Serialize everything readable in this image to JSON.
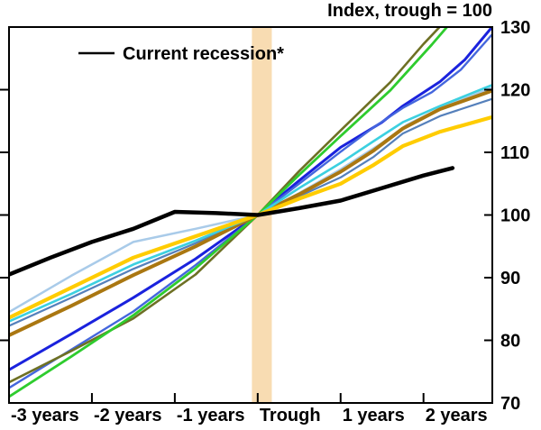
{
  "header": {
    "title": "Index, trough = 100"
  },
  "legend": {
    "label": "Current recession*",
    "line_color": "#000000"
  },
  "chart_data": {
    "type": "line",
    "title": "Index, trough = 100",
    "xlabel": "",
    "ylabel": "Index (trough = 100)",
    "x_axis": {
      "tick_labels": [
        "-3 years",
        "-2 years",
        "-1 years",
        "Trough",
        "1 years",
        "2 years"
      ],
      "tick_values": [
        -3,
        -2,
        -1,
        0,
        1,
        2
      ],
      "range": [
        -3,
        2.83
      ],
      "grid": false
    },
    "y_axis": {
      "side": "right",
      "tick_labels": [
        "70",
        "80",
        "90",
        "100",
        "110",
        "120",
        "130"
      ],
      "tick_values": [
        70,
        80,
        90,
        100,
        110,
        120,
        130
      ],
      "range": [
        70,
        130
      ],
      "grid": false
    },
    "trough_band": {
      "from": -0.07,
      "to": 0.17,
      "color": "#F8DCB2"
    },
    "series": [
      {
        "name": "past-recession-lightblue",
        "color": "#A9CBE9",
        "width": 2.5,
        "points": [
          [
            -3.0,
            84.5
          ],
          [
            -2.25,
            90.3
          ],
          [
            -1.5,
            95.7
          ],
          [
            -0.75,
            97.8
          ],
          [
            0,
            100
          ],
          [
            0.5,
            103.5
          ],
          [
            1.0,
            107.3
          ],
          [
            1.5,
            111.5
          ],
          [
            1.8,
            114.4
          ],
          [
            2.2,
            117.0
          ],
          [
            2.82,
            120.3
          ]
        ]
      },
      {
        "name": "past-recession-steelblue",
        "color": "#5580BB",
        "width": 2.2,
        "points": [
          [
            -3.0,
            82.3
          ],
          [
            -2.25,
            86.8
          ],
          [
            -1.5,
            91.4
          ],
          [
            -0.75,
            95.5
          ],
          [
            0,
            100
          ],
          [
            0.5,
            103.0
          ],
          [
            1.0,
            106.0
          ],
          [
            1.4,
            109.3
          ],
          [
            1.75,
            113.0
          ],
          [
            2.2,
            115.8
          ],
          [
            2.82,
            118.5
          ]
        ]
      },
      {
        "name": "past-recession-blue",
        "color": "#1A22DD",
        "width": 3,
        "points": [
          [
            -3.0,
            75.3
          ],
          [
            -2.25,
            81.0
          ],
          [
            -1.5,
            86.8
          ],
          [
            -0.75,
            93.0
          ],
          [
            0,
            100
          ],
          [
            0.5,
            105.5
          ],
          [
            1.0,
            110.8
          ],
          [
            1.5,
            114.8
          ],
          [
            1.75,
            117.4
          ],
          [
            2.2,
            121.3
          ],
          [
            2.5,
            124.8
          ],
          [
            2.82,
            129.9
          ]
        ]
      },
      {
        "name": "past-recession-cornflower",
        "color": "#4466DD",
        "width": 2.4,
        "points": [
          [
            -3.0,
            72.4
          ],
          [
            -2.25,
            78.5
          ],
          [
            -1.5,
            84.6
          ],
          [
            -0.75,
            92.0
          ],
          [
            0,
            100
          ],
          [
            0.5,
            105.0
          ],
          [
            1.0,
            110.1
          ],
          [
            1.4,
            114.0
          ],
          [
            1.75,
            117.1
          ],
          [
            2.1,
            119.6
          ],
          [
            2.45,
            123.2
          ],
          [
            2.82,
            128.7
          ]
        ]
      },
      {
        "name": "past-recession-olive",
        "color": "#6E7024",
        "width": 2.6,
        "points": [
          [
            -3.0,
            73.3
          ],
          [
            -2.25,
            78.3
          ],
          [
            -1.5,
            83.5
          ],
          [
            -0.75,
            90.5
          ],
          [
            0,
            100
          ],
          [
            0.5,
            107.0
          ],
          [
            1.0,
            113.5
          ],
          [
            1.6,
            121.2
          ],
          [
            2.0,
            127.3
          ],
          [
            2.28,
            131.2
          ]
        ]
      },
      {
        "name": "past-recession-green",
        "color": "#2ECC2E",
        "width": 2.8,
        "points": [
          [
            -3.0,
            71.0
          ],
          [
            -2.25,
            77.4
          ],
          [
            -1.5,
            84.0
          ],
          [
            -0.75,
            91.5
          ],
          [
            0,
            100
          ],
          [
            0.5,
            106.4
          ],
          [
            1.0,
            112.6
          ],
          [
            1.6,
            119.9
          ],
          [
            2.1,
            127.2
          ],
          [
            2.36,
            131.2
          ]
        ]
      },
      {
        "name": "past-recession-goldenrod",
        "color": "#AA7711",
        "width": 4,
        "points": [
          [
            -3.0,
            80.8
          ],
          [
            -2.25,
            85.5
          ],
          [
            -1.5,
            90.4
          ],
          [
            -0.75,
            95.0
          ],
          [
            0,
            100
          ],
          [
            0.5,
            103.3
          ],
          [
            1.0,
            106.9
          ],
          [
            1.4,
            110.3
          ],
          [
            1.75,
            113.8
          ],
          [
            2.2,
            116.9
          ],
          [
            2.82,
            119.8
          ]
        ]
      },
      {
        "name": "past-recession-cyan",
        "color": "#3CD0E0",
        "width": 2.6,
        "points": [
          [
            -3.0,
            83.0
          ],
          [
            -2.25,
            87.4
          ],
          [
            -1.5,
            92.1
          ],
          [
            -0.75,
            95.9
          ],
          [
            0,
            100
          ],
          [
            0.5,
            104.3
          ],
          [
            1.0,
            108.3
          ],
          [
            1.4,
            111.8
          ],
          [
            1.75,
            114.8
          ],
          [
            2.2,
            117.4
          ],
          [
            2.82,
            120.7
          ]
        ]
      },
      {
        "name": "past-recession-yellow",
        "color": "#FFCC00",
        "width": 4.2,
        "points": [
          [
            -3.0,
            83.6
          ],
          [
            -2.25,
            88.4
          ],
          [
            -1.5,
            93.2
          ],
          [
            -0.75,
            96.6
          ],
          [
            0,
            100
          ],
          [
            0.5,
            102.6
          ],
          [
            1.0,
            105.0
          ],
          [
            1.4,
            108.0
          ],
          [
            1.75,
            111.0
          ],
          [
            2.2,
            113.3
          ],
          [
            2.82,
            115.6
          ]
        ]
      },
      {
        "name": "current-recession",
        "color": "#000000",
        "width": 4.5,
        "points": [
          [
            -3.0,
            90.5
          ],
          [
            -2.5,
            93.2
          ],
          [
            -2.0,
            95.7
          ],
          [
            -1.5,
            97.8
          ],
          [
            -1.0,
            100.5
          ],
          [
            -0.5,
            100.3
          ],
          [
            0,
            100
          ],
          [
            0.5,
            101.1
          ],
          [
            1.0,
            102.3
          ],
          [
            1.5,
            104.3
          ],
          [
            2.0,
            106.3
          ],
          [
            2.35,
            107.5
          ]
        ]
      }
    ],
    "legend_position": "top-left-inside"
  }
}
